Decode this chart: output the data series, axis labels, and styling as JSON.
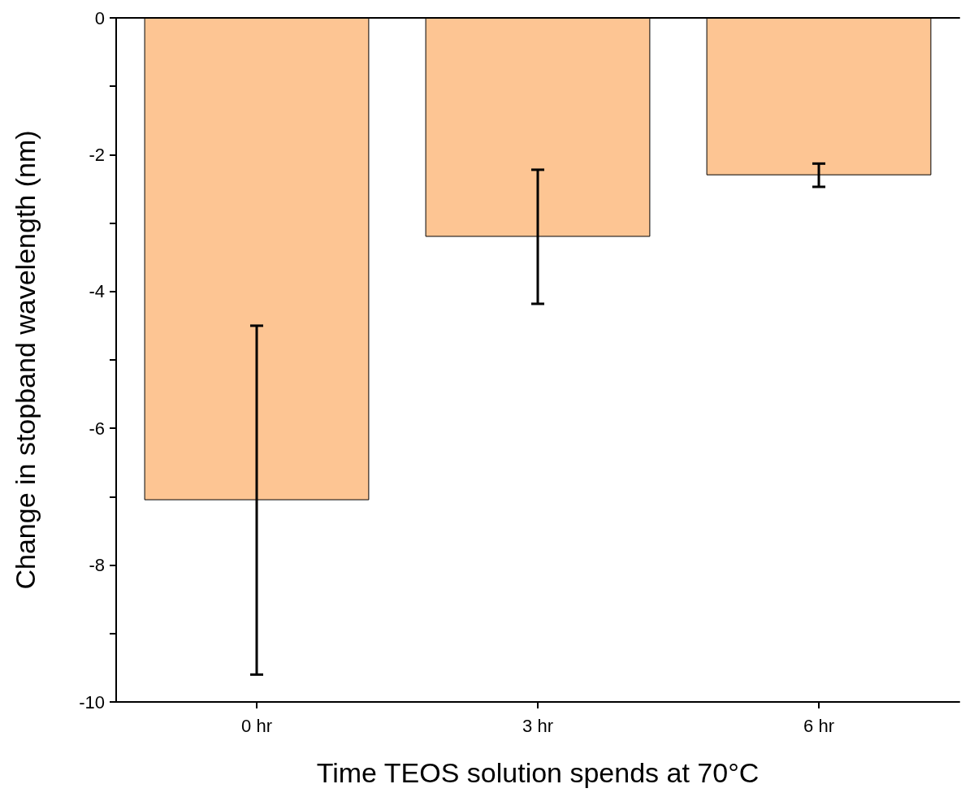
{
  "chart_data": {
    "type": "bar",
    "xlabel": "Time TEOS solution spends at 70°C",
    "ylabel": "Change in stopband wavelength (nm)",
    "categories": [
      "0 hr",
      "3 hr",
      "6 hr"
    ],
    "values": [
      -7.05,
      -3.2,
      -2.3
    ],
    "errors": [
      2.55,
      0.98,
      0.17
    ],
    "color": "#fdc593",
    "ylim": [
      -10,
      0
    ],
    "yticks": [
      0,
      {
        "value": -1,
        "label": null
      },
      -2,
      {
        "value": -3,
        "label": null
      },
      -4,
      {
        "value": -5,
        "label": null
      },
      -6,
      {
        "value": -7,
        "label": null
      },
      -8,
      {
        "value": -9,
        "label": null
      },
      -10
    ],
    "grid": false
  }
}
